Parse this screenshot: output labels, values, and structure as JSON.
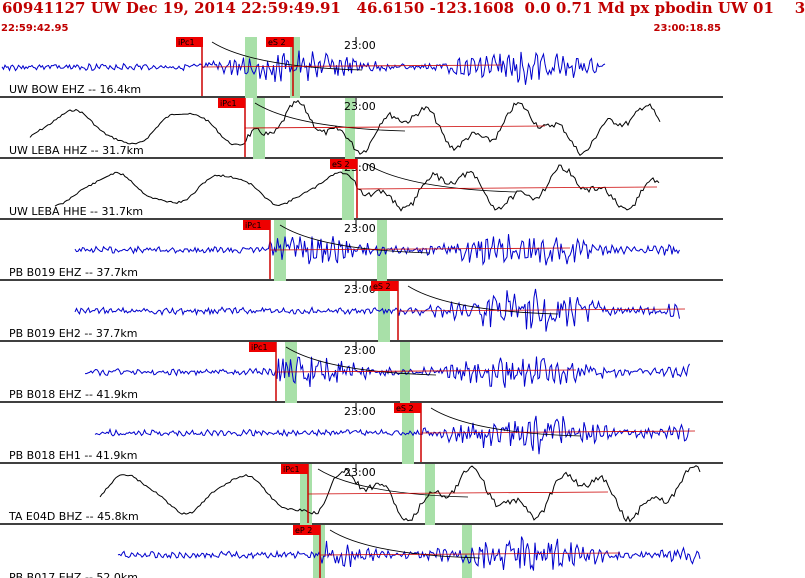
{
  "header": {
    "title": "60941127 UW Dec 19, 2014 22:59:49.91   46.6150 -123.1608  0.0 0.71 Md px pbodin UW 01    3",
    "time_left": "22:59:42.95",
    "time_right": "23:00:18.85"
  },
  "colors": {
    "header_text": "#c00000",
    "blue_trace": "#0000cc",
    "black_trace": "#000000",
    "pick_box": "#ee0000",
    "pick_shade": "#a8e0a8",
    "coda_line": "#cc0000"
  },
  "time_mark_label": "23:00",
  "traces": [
    {
      "label": "UW BOW EHZ -- 16.4km",
      "color": "blue",
      "picks": [
        "iPc1",
        "eS 2"
      ],
      "has_time_mark": true
    },
    {
      "label": "UW LEBA HHZ -- 31.7km",
      "color": "black",
      "picks": [
        "iPc1"
      ],
      "has_time_mark": true
    },
    {
      "label": "UW LEBA HHE -- 31.7km",
      "color": "black",
      "picks": [
        "eS 2"
      ],
      "has_time_mark": true
    },
    {
      "label": "PB B019 EHZ -- 37.7km",
      "color": "blue",
      "picks": [
        "iPc1"
      ],
      "has_time_mark": true
    },
    {
      "label": "PB B019 EH2 -- 37.7km",
      "color": "blue",
      "picks": [
        "eS 2"
      ],
      "has_time_mark": true
    },
    {
      "label": "PB B018 EHZ -- 41.9km",
      "color": "blue",
      "picks": [
        "iPc1"
      ],
      "has_time_mark": true
    },
    {
      "label": "PB B018 EH1 -- 41.9km",
      "color": "blue",
      "picks": [
        "eS 2"
      ],
      "has_time_mark": true
    },
    {
      "label": "TA E04D BHZ -- 45.8km",
      "color": "black",
      "picks": [
        "iPc1"
      ],
      "has_time_mark": true
    },
    {
      "label": "PB B017 EHZ -- 52.0km",
      "color": "blue",
      "picks": [
        "eP 2"
      ],
      "has_time_mark": false
    }
  ]
}
